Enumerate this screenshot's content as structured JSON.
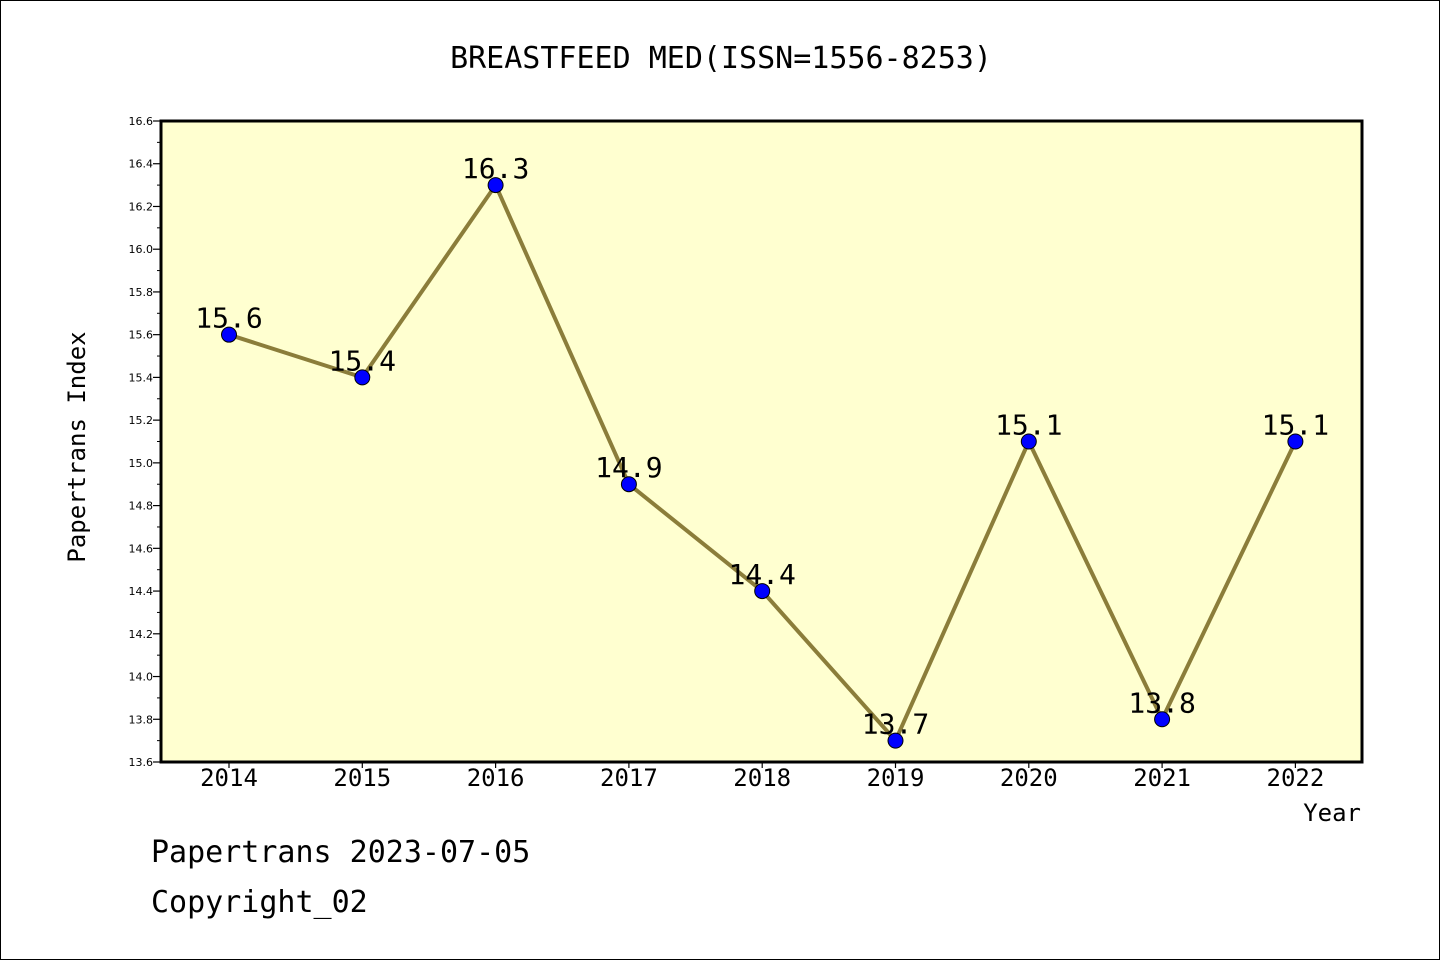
{
  "chart_data": {
    "type": "line",
    "title": "BREASTFEED MED(ISSN=1556-8253)",
    "xlabel": "Year",
    "ylabel": "Papertrans Index",
    "x": [
      "2014",
      "2015",
      "2016",
      "2017",
      "2018",
      "2019",
      "2020",
      "2021",
      "2022"
    ],
    "values": [
      15.6,
      15.4,
      16.3,
      14.9,
      14.4,
      13.7,
      15.1,
      13.8,
      15.1
    ],
    "data_labels": [
      "15.6",
      "15.4",
      "16.3",
      "14.9",
      "14.4",
      "13.7",
      "15.1",
      "13.8",
      "15.1"
    ],
    "ylim": [
      13.6,
      16.6
    ],
    "yticks": [
      "13.6",
      "13.8",
      "14.0",
      "14.2",
      "14.4",
      "14.6",
      "14.8",
      "15.0",
      "15.2",
      "15.4",
      "15.6",
      "15.8",
      "16.0",
      "16.2",
      "16.4",
      "16.6"
    ],
    "grid": false,
    "colors": {
      "plot_background": "#ffffd0",
      "line": "#8b7d3a",
      "marker": "#0000ff"
    }
  },
  "footer": {
    "date_text": "Papertrans 2023-07-05",
    "copyright_text": "Copyright_02"
  }
}
